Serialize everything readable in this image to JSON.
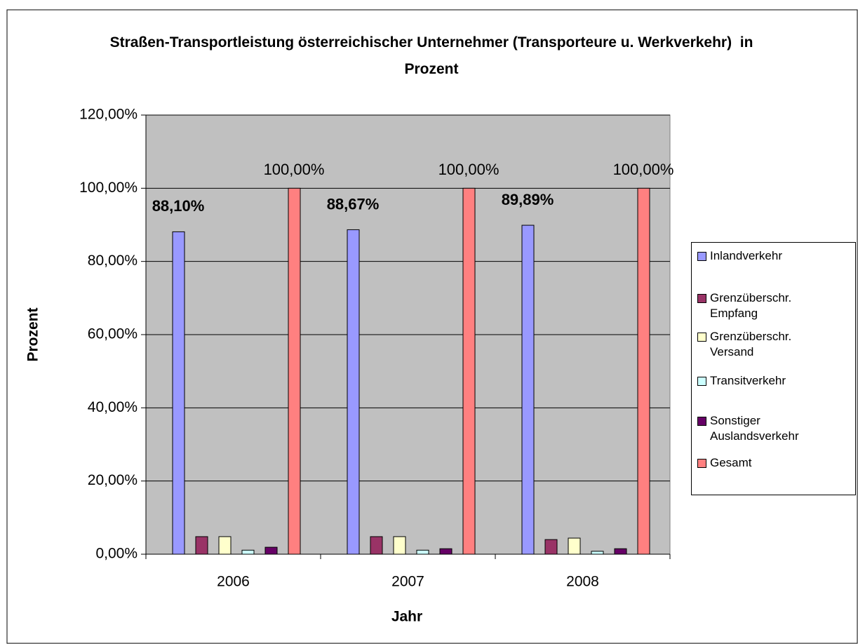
{
  "chart_data": {
    "type": "bar",
    "title": "Straßen-Transportleistung österreichischer Unternehmer (Transporteure u. Werkverkehr)  in Prozent",
    "x_label": "Jahr",
    "y_label": "Prozent",
    "categories": [
      "2006",
      "2007",
      "2008"
    ],
    "series": [
      {
        "name": "Inlandverkehr",
        "color": "#9999ff",
        "values": [
          88.1,
          88.67,
          89.89
        ],
        "value_labels": [
          "88,10%",
          "88,67%",
          "89,89%"
        ]
      },
      {
        "name": "Grenzüberschr. Empfang",
        "color": "#993366",
        "values": [
          4.8,
          4.8,
          4.0
        ]
      },
      {
        "name": "Grenzüberschr. Versand",
        "color": "#ffffcc",
        "values": [
          4.8,
          4.8,
          4.4
        ]
      },
      {
        "name": "Transitverkehr",
        "color": "#ccffff",
        "values": [
          1.1,
          1.1,
          0.8
        ]
      },
      {
        "name": "Sonstiger Auslandsverkehr",
        "color": "#660066",
        "values": [
          1.9,
          1.5,
          1.5
        ]
      },
      {
        "name": "Gesamt",
        "color": "#ff8080",
        "values": [
          100,
          100,
          100
        ],
        "value_labels": [
          "100,00%",
          "100,00%",
          "100,00%"
        ]
      }
    ],
    "ylim": [
      0,
      120
    ],
    "yticks": [
      {
        "value": 0,
        "label": "0,00%"
      },
      {
        "value": 20,
        "label": "20,00%"
      },
      {
        "value": 40,
        "label": "40,00%"
      },
      {
        "value": 60,
        "label": "60,00%"
      },
      {
        "value": 80,
        "label": "80,00%"
      },
      {
        "value": 100,
        "label": "100,00%"
      },
      {
        "value": 120,
        "label": "120,00%"
      }
    ],
    "grid": true,
    "plot_background": "#c0c0c0",
    "legend": "right"
  }
}
